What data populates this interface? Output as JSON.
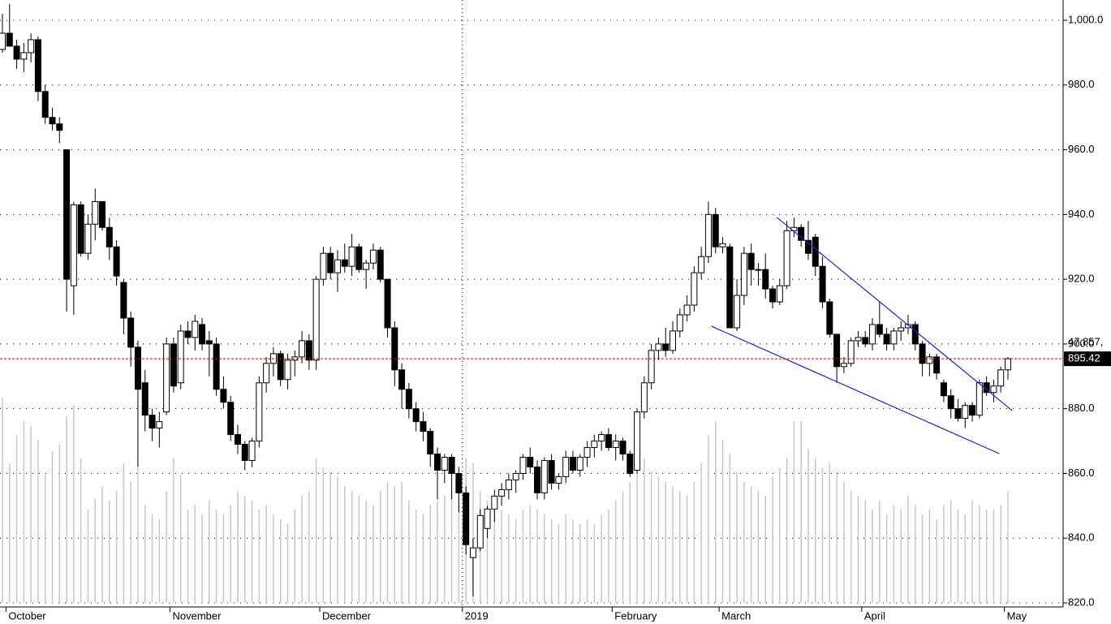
{
  "chart_data": {
    "type": "candlestick",
    "categories": [
      null,
      "October",
      null,
      null,
      null,
      null,
      null,
      null,
      null,
      null,
      null,
      null,
      null,
      null,
      null,
      null,
      null,
      null,
      null,
      null,
      null,
      null,
      null,
      null,
      "November",
      null,
      null,
      null,
      null,
      null,
      null,
      null,
      null,
      null,
      null,
      null,
      null,
      null,
      null,
      null,
      null,
      null,
      null,
      null,
      null,
      "December",
      null,
      null,
      null,
      null,
      null,
      null,
      null,
      null,
      null,
      null,
      null,
      null,
      null,
      null,
      null,
      null,
      null,
      null,
      null,
      "2019",
      null,
      null,
      null,
      null,
      null,
      null,
      null,
      null,
      null,
      null,
      null,
      null,
      null,
      null,
      null,
      null,
      null,
      null,
      null,
      null,
      "February",
      null,
      null,
      null,
      null,
      null,
      null,
      null,
      null,
      null,
      null,
      null,
      null,
      null,
      null,
      "March",
      null,
      null,
      null,
      null,
      null,
      null,
      null,
      null,
      null,
      null,
      null,
      null,
      null,
      null,
      null,
      null,
      null,
      null,
      null,
      "April",
      null,
      null,
      null,
      null,
      null,
      null,
      null,
      null,
      null,
      null,
      null,
      null,
      null,
      null,
      null,
      null,
      null,
      null,
      null,
      "May"
    ],
    "open": [
      991,
      996,
      992,
      988,
      990,
      994,
      978,
      970,
      968,
      960,
      918,
      943,
      928,
      937,
      944,
      936,
      930,
      919,
      908,
      899,
      888,
      878,
      874,
      879,
      900,
      888,
      904,
      902,
      906,
      901,
      900,
      886,
      882,
      872,
      869,
      864,
      870,
      888,
      894,
      897,
      889,
      895,
      896,
      901,
      895,
      920,
      928,
      922,
      926,
      924,
      930,
      923,
      925,
      929,
      920,
      905,
      892,
      886,
      880,
      876,
      873,
      866,
      861,
      865,
      860,
      854,
      834,
      837,
      843,
      849,
      853,
      855,
      858,
      860,
      865,
      862,
      854,
      864,
      857,
      859,
      865,
      861,
      865,
      868,
      870,
      872,
      868,
      870,
      866,
      861,
      879,
      888,
      898,
      900,
      898,
      904,
      909,
      912,
      922,
      927,
      940,
      930,
      930,
      905,
      915,
      928,
      923,
      923,
      917,
      913,
      918,
      935,
      936,
      932,
      933,
      924,
      913,
      903,
      893,
      894,
      901,
      902,
      900,
      906,
      903,
      900,
      904,
      905,
      906,
      900,
      894,
      896,
      888,
      884,
      880,
      877,
      881,
      878,
      888,
      885,
      887,
      892
    ],
    "high": [
      1002,
      1005,
      994,
      993,
      996,
      995,
      980,
      973,
      970,
      960,
      944,
      944,
      940,
      948,
      944,
      939,
      932,
      920,
      910,
      901,
      892,
      880,
      879,
      902,
      902,
      906,
      907,
      909,
      908,
      904,
      902,
      890,
      884,
      875,
      870,
      871,
      890,
      896,
      899,
      898,
      897,
      898,
      904,
      903,
      921,
      930,
      930,
      929,
      931,
      934,
      931,
      926,
      931,
      930,
      920,
      907,
      894,
      888,
      882,
      879,
      874,
      868,
      866,
      866,
      862,
      856,
      840,
      849,
      850,
      855,
      857,
      860,
      861,
      866,
      868,
      864,
      865,
      866,
      860,
      867,
      867,
      866,
      870,
      872,
      873,
      874,
      872,
      871,
      867,
      880,
      890,
      900,
      902,
      905,
      907,
      911,
      915,
      924,
      930,
      944,
      942,
      933,
      931,
      920,
      930,
      931,
      925,
      928,
      918,
      920,
      938,
      939,
      937,
      938,
      934,
      927,
      914,
      903,
      896,
      902,
      904,
      904,
      908,
      913,
      905,
      905,
      907,
      909,
      907,
      901,
      897,
      897,
      889,
      886,
      883,
      882,
      882,
      889,
      890,
      889,
      893,
      896
    ],
    "low": [
      990,
      992,
      985,
      984,
      987,
      975,
      968,
      966,
      962,
      910,
      909,
      927,
      926,
      932,
      935,
      926,
      918,
      903,
      893,
      862,
      873,
      870,
      868,
      878,
      885,
      886,
      900,
      898,
      898,
      890,
      884,
      880,
      870,
      866,
      861,
      862,
      868,
      885,
      890,
      887,
      886,
      890,
      894,
      892,
      892,
      918,
      920,
      916,
      922,
      921,
      922,
      917,
      923,
      919,
      902,
      887,
      880,
      877,
      873,
      870,
      862,
      852,
      857,
      852,
      848,
      835,
      822,
      836,
      840,
      845,
      850,
      852,
      854,
      858,
      860,
      852,
      852,
      855,
      855,
      857,
      860,
      859,
      862,
      865,
      867,
      867,
      864,
      864,
      859,
      860,
      877,
      886,
      895,
      896,
      897,
      902,
      907,
      910,
      920,
      925,
      928,
      928,
      905,
      904,
      912,
      918,
      918,
      914,
      911,
      912,
      917,
      933,
      930,
      926,
      921,
      911,
      902,
      888,
      891,
      893,
      899,
      899,
      898,
      902,
      898,
      898,
      901,
      903,
      898,
      890,
      890,
      889,
      882,
      877,
      876,
      874,
      876,
      877,
      884,
      882,
      885,
      889
    ],
    "close": [
      996,
      992,
      988,
      990,
      994,
      978,
      970,
      968,
      966,
      920,
      943,
      928,
      937,
      944,
      936,
      930,
      921,
      908,
      899,
      886,
      878,
      874,
      876,
      900,
      887,
      904,
      902,
      907,
      900,
      900,
      886,
      882,
      872,
      869,
      864,
      870,
      888,
      894,
      897,
      889,
      895,
      896,
      901,
      895,
      920,
      928,
      922,
      926,
      924,
      930,
      923,
      925,
      929,
      920,
      905,
      892,
      886,
      880,
      876,
      873,
      866,
      861,
      865,
      860,
      854,
      838,
      837,
      847,
      849,
      853,
      855,
      858,
      860,
      865,
      862,
      854,
      864,
      857,
      859,
      865,
      861,
      865,
      868,
      870,
      872,
      868,
      870,
      866,
      860,
      879,
      888,
      898,
      900,
      898,
      904,
      909,
      912,
      922,
      927,
      940,
      930,
      931,
      905,
      915,
      928,
      923,
      923,
      917,
      913,
      918,
      935,
      936,
      932,
      928,
      924,
      913,
      903,
      893,
      894,
      901,
      902,
      900,
      906,
      903,
      900,
      904,
      905,
      906,
      900,
      894,
      896,
      891,
      884,
      880,
      877,
      881,
      878,
      888,
      885,
      887,
      892,
      895.42
    ],
    "volume": [
      88000,
      60000,
      72000,
      78000,
      76000,
      70000,
      55000,
      65000,
      68000,
      80000,
      85000,
      62000,
      40000,
      45000,
      50000,
      44000,
      48000,
      60000,
      52000,
      58000,
      42000,
      38000,
      36000,
      48000,
      62000,
      55000,
      40000,
      42000,
      38000,
      44000,
      40000,
      38000,
      42000,
      48000,
      46000,
      44000,
      40000,
      42000,
      38000,
      36000,
      34000,
      40000,
      46000,
      48000,
      62000,
      58000,
      56000,
      54000,
      50000,
      48000,
      46000,
      44000,
      42000,
      48000,
      52000,
      50000,
      52000,
      44000,
      40000,
      38000,
      42000,
      44000,
      46000,
      48000,
      52000,
      62000,
      60000,
      48000,
      44000,
      42000,
      40000,
      38000,
      36000,
      40000,
      42000,
      40000,
      38000,
      36000,
      34000,
      38000,
      36000,
      34000,
      36000,
      34000,
      38000,
      40000,
      44000,
      48000,
      52000,
      60000,
      62000,
      56000,
      54000,
      52000,
      50000,
      48000,
      46000,
      52000,
      60000,
      72000,
      78000,
      70000,
      64000,
      56000,
      52000,
      50000,
      48000,
      46000,
      54000,
      58000,
      62000,
      78000,
      78000,
      66000,
      62000,
      58000,
      60000,
      56000,
      52000,
      48000,
      46000,
      44000,
      40000,
      44000,
      38000,
      42000,
      40000,
      46000,
      42000,
      38000,
      40000,
      36000,
      42000,
      44000,
      40000,
      38000,
      44000,
      42000,
      40000,
      40000,
      42000,
      47857
    ],
    "volume_ylim": [
      0,
      250000
    ],
    "volume_label": "47,857,",
    "last_price": 895.42,
    "trendlines": [
      {
        "x": [
          99.4,
          139.8
        ],
        "y": [
          905.5,
          866.1
        ]
      },
      {
        "x": [
          108.6,
          141.6
        ],
        "y": [
          939.1,
          879.4
        ]
      }
    ],
    "ylim": [
      820,
      1000
    ],
    "yticks": [
      {
        "value": 820,
        "label": "820.0"
      },
      {
        "value": 840,
        "label": "840.0"
      },
      {
        "value": 860,
        "label": "860.0"
      },
      {
        "value": 880,
        "label": "880.0"
      },
      {
        "value": 900,
        "label": "900.0"
      },
      {
        "value": 920,
        "label": "920.0"
      },
      {
        "value": 940,
        "label": "940.0"
      },
      {
        "value": 960,
        "label": "960.0"
      },
      {
        "value": 980,
        "label": "980.0"
      },
      {
        "value": 1000,
        "label": "1,000.0"
      }
    ],
    "grid": true,
    "up_color": "#ffffff",
    "down_color": "#000000",
    "volume_color": "#c8c8c8",
    "trendline_color": "#2020d0",
    "last_color": "#d00000"
  }
}
